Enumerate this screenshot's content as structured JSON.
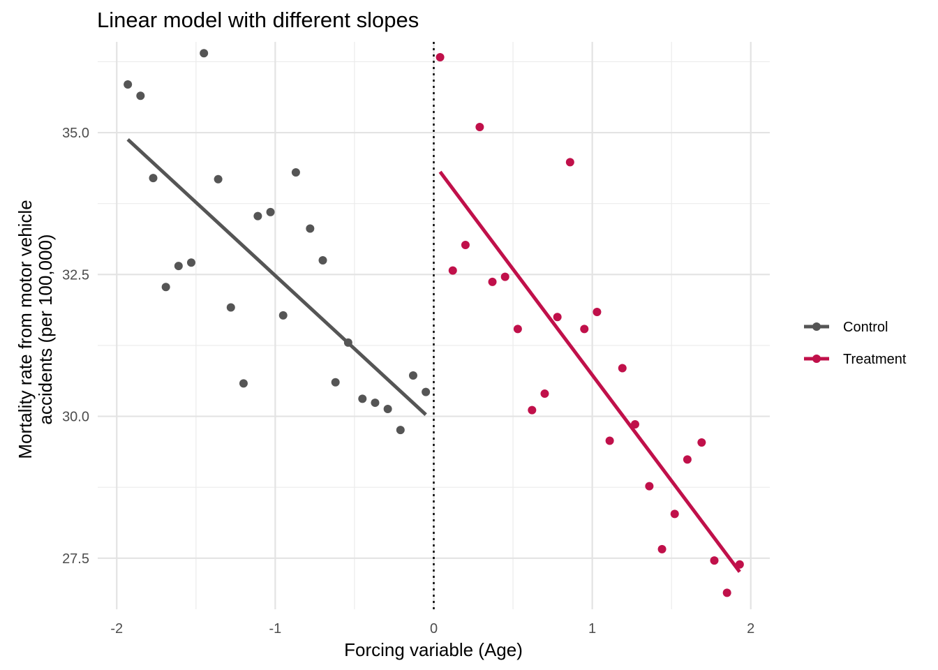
{
  "chart_data": {
    "type": "scatter",
    "title": "Linear model with different slopes",
    "xlabel": "Forcing variable (Age)",
    "ylabel_lines": [
      "Mortality rate from motor vehicle",
      "accidents (per 100,000)"
    ],
    "xlim": [
      -2.12,
      2.12
    ],
    "ylim": [
      26.6,
      36.6
    ],
    "x_ticks": [
      -2,
      -1,
      0,
      1,
      2
    ],
    "x_tick_labels": [
      "-2",
      "-1",
      "0",
      "1",
      "2"
    ],
    "y_ticks": [
      27.5,
      30.0,
      32.5,
      35.0
    ],
    "y_tick_labels": [
      "27.5",
      "30.0",
      "32.5",
      "35.0"
    ],
    "cutoff_x": 0,
    "grid": true,
    "legend_position": "right",
    "series": [
      {
        "name": "Control",
        "color": "#555555",
        "points": [
          [
            -1.93,
            35.85
          ],
          [
            -1.85,
            35.65
          ],
          [
            -1.77,
            34.2
          ],
          [
            -1.69,
            32.28
          ],
          [
            -1.61,
            32.65
          ],
          [
            -1.53,
            32.71
          ],
          [
            -1.45,
            36.4
          ],
          [
            -1.36,
            34.18
          ],
          [
            -1.28,
            31.92
          ],
          [
            -1.2,
            30.58
          ],
          [
            -1.11,
            33.53
          ],
          [
            -1.03,
            33.6
          ],
          [
            -0.95,
            31.78
          ],
          [
            -0.87,
            34.3
          ],
          [
            -0.78,
            33.31
          ],
          [
            -0.7,
            32.75
          ],
          [
            -0.62,
            30.6
          ],
          [
            -0.54,
            31.3
          ],
          [
            -0.45,
            30.31
          ],
          [
            -0.37,
            30.24
          ],
          [
            -0.29,
            30.13
          ],
          [
            -0.21,
            29.76
          ],
          [
            -0.13,
            30.72
          ],
          [
            -0.05,
            30.43
          ]
        ],
        "fit": [
          [
            -1.93,
            34.88
          ],
          [
            -0.05,
            30.03
          ]
        ]
      },
      {
        "name": "Treatment",
        "color": "#c0104a",
        "points": [
          [
            0.04,
            36.33
          ],
          [
            0.12,
            32.57
          ],
          [
            0.2,
            33.02
          ],
          [
            0.29,
            35.1
          ],
          [
            0.37,
            32.37
          ],
          [
            0.45,
            32.46
          ],
          [
            0.53,
            31.54
          ],
          [
            0.62,
            30.11
          ],
          [
            0.7,
            30.4
          ],
          [
            0.78,
            31.75
          ],
          [
            0.86,
            34.48
          ],
          [
            0.95,
            31.54
          ],
          [
            1.03,
            31.84
          ],
          [
            1.11,
            29.57
          ],
          [
            1.19,
            30.85
          ],
          [
            1.27,
            29.86
          ],
          [
            1.36,
            28.77
          ],
          [
            1.44,
            27.66
          ],
          [
            1.52,
            28.28
          ],
          [
            1.6,
            29.24
          ],
          [
            1.69,
            29.54
          ],
          [
            1.77,
            27.46
          ],
          [
            1.85,
            26.89
          ],
          [
            1.93,
            27.39
          ]
        ],
        "fit": [
          [
            0.04,
            34.31
          ],
          [
            1.93,
            27.26
          ]
        ]
      }
    ]
  }
}
